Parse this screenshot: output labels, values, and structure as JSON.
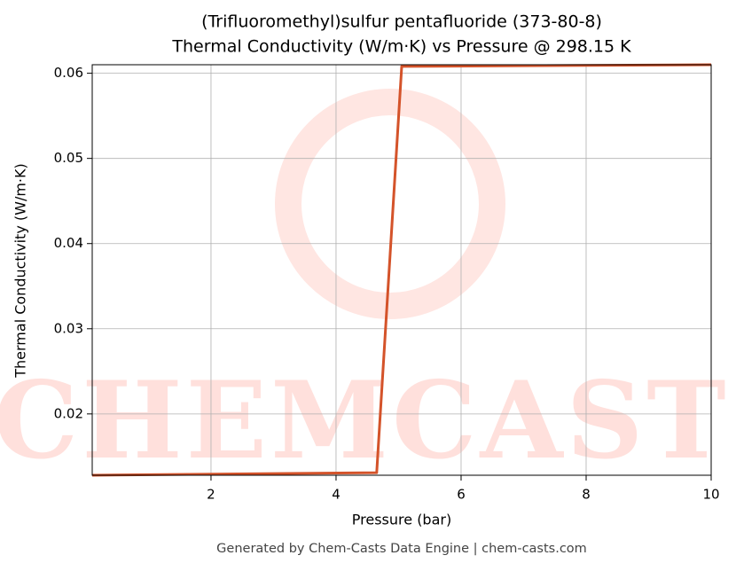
{
  "chart_data": {
    "type": "line",
    "title": "(Trifluoromethyl)sulfur pentafluoride (373-80-8)",
    "subtitle": "Thermal Conductivity (W/m·K) vs Pressure @ 298.15 K",
    "x_label": "Pressure (bar)",
    "y_label": "Thermal Conductivity (W/m·K)",
    "watermark": "CHEMCASTS",
    "footer": "Generated by Chem-Casts Data Engine | chem-casts.com",
    "x": [
      0.1,
      4.65,
      5.05,
      10
    ],
    "series": [
      {
        "name": "Thermal Conductivity",
        "color": "#d4532a",
        "values": [
          0.0128,
          0.0131,
          0.0608,
          0.061
        ]
      }
    ],
    "xlim": [
      0.1,
      10
    ],
    "xticks": [
      2,
      4,
      6,
      8,
      10
    ],
    "ylim": [
      0.0128,
      0.061
    ],
    "yticks": [
      0.02,
      0.03,
      0.04,
      0.05,
      0.06
    ],
    "grid": true
  }
}
